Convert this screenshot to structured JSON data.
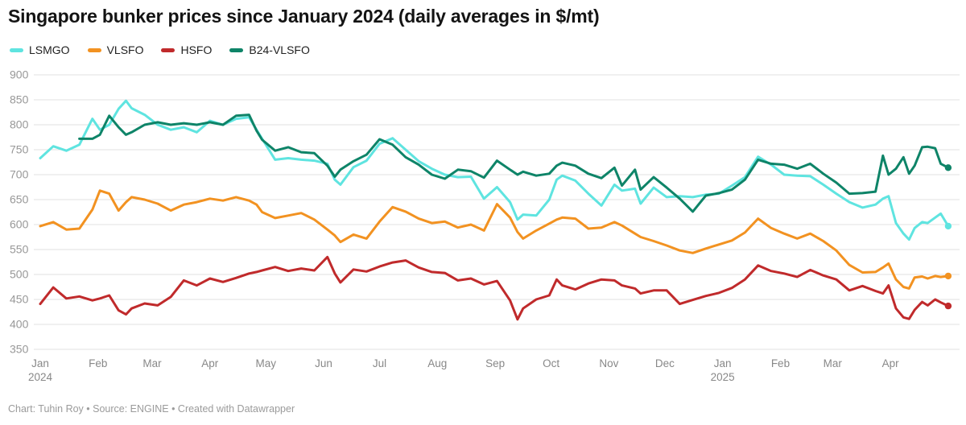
{
  "header": {
    "title": "Singapore bunker prices since January 2024 (daily averages in $/mt)"
  },
  "footer": {
    "credit": "Chart: Tuhin Roy • Source: ENGINE • Created with Datawrapper"
  },
  "chart_data": {
    "type": "line",
    "title": "Singapore bunker prices since January 2024 (daily averages in $/mt)",
    "unit": "$/mt",
    "ylim": [
      350,
      900
    ],
    "yticks": [
      900,
      850,
      800,
      750,
      700,
      650,
      600,
      550,
      500,
      450,
      400,
      350
    ],
    "grid": true,
    "legend_position": "top",
    "xticks": [
      {
        "date": "2024-01-01",
        "label": "Jan",
        "sublabel": "2024"
      },
      {
        "date": "2024-02-01",
        "label": "Feb",
        "sublabel": ""
      },
      {
        "date": "2024-03-01",
        "label": "Mar",
        "sublabel": ""
      },
      {
        "date": "2024-04-01",
        "label": "Apr",
        "sublabel": ""
      },
      {
        "date": "2024-05-01",
        "label": "May",
        "sublabel": ""
      },
      {
        "date": "2024-06-01",
        "label": "Jun",
        "sublabel": ""
      },
      {
        "date": "2024-07-01",
        "label": "Jul",
        "sublabel": ""
      },
      {
        "date": "2024-08-01",
        "label": "Aug",
        "sublabel": ""
      },
      {
        "date": "2024-09-01",
        "label": "Sep",
        "sublabel": ""
      },
      {
        "date": "2024-10-01",
        "label": "Oct",
        "sublabel": ""
      },
      {
        "date": "2024-11-01",
        "label": "Nov",
        "sublabel": ""
      },
      {
        "date": "2024-12-01",
        "label": "Dec",
        "sublabel": ""
      },
      {
        "date": "2025-01-01",
        "label": "Jan",
        "sublabel": "2025"
      },
      {
        "date": "2025-02-01",
        "label": "Feb",
        "sublabel": ""
      },
      {
        "date": "2025-03-01",
        "label": "Mar",
        "sublabel": ""
      },
      {
        "date": "2025-04-01",
        "label": "Apr",
        "sublabel": ""
      }
    ],
    "x": [
      "2024-01-01",
      "2024-01-08",
      "2024-01-15",
      "2024-01-22",
      "2024-01-29",
      "2024-02-02",
      "2024-02-07",
      "2024-02-12",
      "2024-02-16",
      "2024-02-19",
      "2024-02-26",
      "2024-03-04",
      "2024-03-11",
      "2024-03-18",
      "2024-03-25",
      "2024-04-01",
      "2024-04-08",
      "2024-04-15",
      "2024-04-22",
      "2024-04-26",
      "2024-04-29",
      "2024-05-06",
      "2024-05-13",
      "2024-05-20",
      "2024-05-27",
      "2024-06-03",
      "2024-06-07",
      "2024-06-10",
      "2024-06-17",
      "2024-06-24",
      "2024-07-01",
      "2024-07-08",
      "2024-07-15",
      "2024-07-22",
      "2024-07-29",
      "2024-08-05",
      "2024-08-12",
      "2024-08-19",
      "2024-08-26",
      "2024-09-02",
      "2024-09-09",
      "2024-09-13",
      "2024-09-16",
      "2024-09-23",
      "2024-09-30",
      "2024-10-04",
      "2024-10-07",
      "2024-10-14",
      "2024-10-21",
      "2024-10-28",
      "2024-11-04",
      "2024-11-08",
      "2024-11-15",
      "2024-11-18",
      "2024-11-25",
      "2024-12-02",
      "2024-12-09",
      "2024-12-16",
      "2024-12-23",
      "2024-12-30",
      "2025-01-06",
      "2025-01-13",
      "2025-01-20",
      "2025-01-27",
      "2025-02-03",
      "2025-02-10",
      "2025-02-17",
      "2025-02-24",
      "2025-03-03",
      "2025-03-10",
      "2025-03-17",
      "2025-03-24",
      "2025-03-28",
      "2025-03-31",
      "2025-04-04",
      "2025-04-08",
      "2025-04-11",
      "2025-04-14",
      "2025-04-18",
      "2025-04-21",
      "2025-04-25",
      "2025-04-28",
      "2025-05-02"
    ],
    "series": [
      {
        "name": "LSMGO",
        "color": "#5fe4e0",
        "values": [
          733,
          757,
          748,
          760,
          812,
          790,
          800,
          832,
          848,
          833,
          820,
          800,
          790,
          795,
          785,
          808,
          800,
          812,
          815,
          790,
          772,
          730,
          733,
          730,
          728,
          722,
          690,
          680,
          715,
          728,
          762,
          773,
          750,
          727,
          712,
          700,
          695,
          696,
          652,
          675,
          645,
          610,
          620,
          618,
          650,
          690,
          698,
          688,
          662,
          638,
          680,
          668,
          672,
          642,
          674,
          655,
          657,
          655,
          660,
          662,
          678,
          695,
          736,
          720,
          700,
          698,
          697,
          680,
          662,
          645,
          634,
          640,
          652,
          657,
          603,
          582,
          570,
          593,
          605,
          603,
          614,
          622,
          597
        ]
      },
      {
        "name": "VLSFO",
        "color": "#f29221",
        "values": [
          597,
          605,
          590,
          592,
          630,
          668,
          662,
          628,
          645,
          655,
          650,
          642,
          628,
          640,
          645,
          652,
          648,
          655,
          648,
          640,
          625,
          613,
          618,
          623,
          610,
          590,
          578,
          565,
          580,
          572,
          606,
          635,
          626,
          612,
          603,
          606,
          594,
          600,
          588,
          641,
          614,
          585,
          572,
          588,
          602,
          610,
          614,
          612,
          592,
          594,
          605,
          598,
          582,
          575,
          567,
          558,
          548,
          543,
          552,
          560,
          568,
          584,
          612,
          593,
          582,
          572,
          582,
          567,
          548,
          519,
          504,
          505,
          514,
          522,
          490,
          475,
          472,
          494,
          496,
          492,
          497,
          495,
          497
        ]
      },
      {
        "name": "HSFO",
        "color": "#c02a2b",
        "values": [
          441,
          474,
          452,
          456,
          448,
          452,
          458,
          428,
          420,
          432,
          442,
          438,
          455,
          488,
          478,
          492,
          485,
          493,
          502,
          505,
          508,
          515,
          507,
          512,
          508,
          535,
          502,
          484,
          510,
          506,
          516,
          524,
          528,
          514,
          505,
          503,
          488,
          492,
          480,
          487,
          448,
          410,
          432,
          450,
          458,
          490,
          478,
          470,
          482,
          490,
          488,
          478,
          472,
          462,
          468,
          468,
          441,
          449,
          457,
          463,
          473,
          490,
          518,
          507,
          502,
          495,
          509,
          498,
          490,
          468,
          477,
          467,
          462,
          478,
          432,
          414,
          411,
          429,
          445,
          438,
          450,
          444,
          437
        ]
      },
      {
        "name": "B24-VLSFO",
        "color": "#0e8468",
        "values": [
          null,
          null,
          null,
          772,
          772,
          780,
          818,
          795,
          780,
          785,
          800,
          805,
          800,
          803,
          800,
          805,
          800,
          818,
          820,
          788,
          770,
          748,
          755,
          745,
          743,
          718,
          696,
          710,
          727,
          740,
          771,
          760,
          735,
          720,
          700,
          692,
          710,
          707,
          694,
          728,
          710,
          700,
          706,
          698,
          702,
          718,
          724,
          718,
          702,
          693,
          714,
          678,
          710,
          670,
          695,
          674,
          652,
          626,
          658,
          663,
          670,
          690,
          730,
          722,
          720,
          712,
          722,
          702,
          684,
          662,
          663,
          666,
          738,
          700,
          712,
          735,
          702,
          718,
          755,
          756,
          753,
          722,
          714
        ]
      }
    ]
  }
}
